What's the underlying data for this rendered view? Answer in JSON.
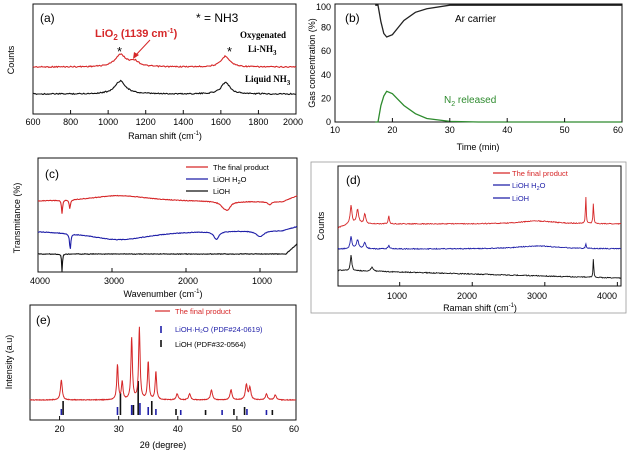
{
  "chart_data": [
    {
      "panel": "(a)",
      "type": "line",
      "xlabel": "Raman shift (cm⁻¹)",
      "ylabel": "Counts",
      "xlim": [
        600,
        2000
      ],
      "xticks": [
        600,
        800,
        1000,
        1200,
        1400,
        1600,
        1800,
        2000
      ],
      "legend_marker": "* = NH3",
      "annotation": "LiO2 (1139 cm-1)",
      "peaks": [
        {
          "center": 1065,
          "label": "*"
        },
        {
          "center": 1139,
          "label": "LiO2"
        },
        {
          "center": 1625,
          "label": "*"
        }
      ],
      "series": [
        {
          "name": "Oxygenated Li-NH3",
          "color": "#d62728",
          "offset": 2
        },
        {
          "name": "Liquid NH3",
          "color": "#111111",
          "offset": 1
        }
      ]
    },
    {
      "panel": "(b)",
      "type": "line",
      "xlabel": "Time (min)",
      "ylabel": "Gas concentration (%)",
      "xlim": [
        10,
        60
      ],
      "ylim": [
        0,
        100
      ],
      "xticks": [
        10,
        20,
        30,
        40,
        50,
        60
      ],
      "yticks": [
        0,
        20,
        40,
        60,
        80,
        100
      ],
      "series": [
        {
          "name": "Ar carrier",
          "color": "#222222",
          "x": [
            17,
            17.5,
            18,
            18.5,
            19,
            20,
            21,
            22,
            24,
            26,
            30,
            35,
            60
          ],
          "y": [
            99,
            99,
            85,
            75,
            72,
            74,
            80,
            86,
            93,
            96,
            99,
            99,
            99
          ]
        },
        {
          "name": "N2 released",
          "color": "#2e8b2e",
          "x": [
            17,
            17.5,
            18,
            18.5,
            19,
            20,
            21,
            22,
            24,
            26,
            30,
            35,
            60
          ],
          "y": [
            0,
            0,
            14,
            22,
            26,
            24,
            19,
            14,
            7,
            3,
            0.5,
            0,
            0
          ]
        }
      ]
    },
    {
      "panel": "(c)",
      "type": "line",
      "xlabel": "Wavenumber (cm⁻¹)",
      "ylabel": "Transmitance (%)",
      "xlim": [
        4000,
        500
      ],
      "xticks": [
        4000,
        3000,
        2000,
        1000
      ],
      "series": [
        {
          "name": "The final product",
          "color": "#d62728",
          "offset": 3
        },
        {
          "name": "LiOH H2O",
          "color": "#1f1fa8",
          "offset": 2
        },
        {
          "name": "LiOH",
          "color": "#111111",
          "offset": 1
        }
      ]
    },
    {
      "panel": "(d)",
      "type": "line",
      "xlabel": "Raman shift (cm⁻¹)",
      "ylabel": "Counts",
      "xlim": [
        150,
        4050
      ],
      "xticks": [
        1000,
        2000,
        3000,
        4000
      ],
      "series": [
        {
          "name": "The final product",
          "color": "#d62728",
          "offset": 3
        },
        {
          "name": "LiOH H2O",
          "color": "#1f1fa8",
          "offset": 2
        },
        {
          "name": "LiOH",
          "color": "#111111",
          "offset": 1
        }
      ]
    },
    {
      "panel": "(e)",
      "type": "line",
      "xlabel": "2θ (degree)",
      "ylabel": "Intensity (a.u)",
      "xlim": [
        15,
        60
      ],
      "xticks": [
        20,
        30,
        40,
        50,
        60
      ],
      "series": [
        {
          "name": "The final product",
          "color": "#d62728"
        },
        {
          "name": "LiOH H2O (PDF#24-0619)",
          "color": "#1f1fa8"
        },
        {
          "name": "LiOH (PDF#32-0564)",
          "color": "#111111"
        }
      ]
    }
  ],
  "labels": {
    "a": {
      "panel": "(a)",
      "xlabel": "Raman shift (cm",
      "xlabel_sup": "-1",
      "xlabel_end": ")",
      "ylabel": "Counts",
      "legend": "* = NH3",
      "annot_main": "LiO",
      "annot_sub": "2",
      "annot_rest": " (1139 cm",
      "annot_sup": "-1",
      "annot_end": ")",
      "oxy1": "Oxygenated",
      "oxy2": "Li-NH",
      "oxy2_sub": "3",
      "liq": "Liquid NH",
      "liq_sub": "3",
      "star": "*",
      "ticks": [
        "600",
        "800",
        "1000",
        "1200",
        "1400",
        "1600",
        "1800",
        "2000"
      ]
    },
    "b": {
      "panel": "(b)",
      "xlabel": "Time (min)",
      "ylabel": "Gas concentration (%)",
      "ar": "Ar carrier",
      "n2": "N",
      "n2_sub": "2",
      "n2_rest": " released",
      "xticks": [
        "10",
        "20",
        "30",
        "40",
        "50",
        "60"
      ],
      "yticks": [
        "0",
        "20",
        "40",
        "60",
        "80",
        "100"
      ]
    },
    "c": {
      "panel": "(c)",
      "xlabel": "Wavenumber (cm",
      "xlabel_sup": "-1",
      "xlabel_end": ")",
      "ylabel": "Transmitance (%)",
      "leg1": "The final product",
      "leg2": "LiOH H",
      "leg2_sub": "2",
      "leg2_end": "O",
      "leg3": "LiOH",
      "xticks": [
        "4000",
        "3000",
        "2000",
        "1000"
      ]
    },
    "d": {
      "panel": "(d)",
      "xlabel": "Raman shift (cm",
      "xlabel_sup": "-1",
      "xlabel_end": ")",
      "ylabel": "Counts",
      "leg1": "The final product",
      "leg2": "LiOH H",
      "leg2_sub": "2",
      "leg2_end": "O",
      "leg3": "LiOH",
      "xticks": [
        "1000",
        "2000",
        "3000",
        "4000"
      ]
    },
    "e": {
      "panel": "(e)",
      "xlabel": "2θ (degree)",
      "ylabel": "Intensity (a.u)",
      "leg1": "The final product",
      "leg2": "LiOH·H₂O (PDF#24-0619)",
      "leg3": "LiOH (PDF#32-0564)",
      "xticks": [
        "20",
        "30",
        "40",
        "50",
        "60"
      ]
    }
  },
  "colors": {
    "red": "#d62728",
    "blue": "#1f1fa8",
    "black": "#111111",
    "green": "#2e8b2e"
  }
}
